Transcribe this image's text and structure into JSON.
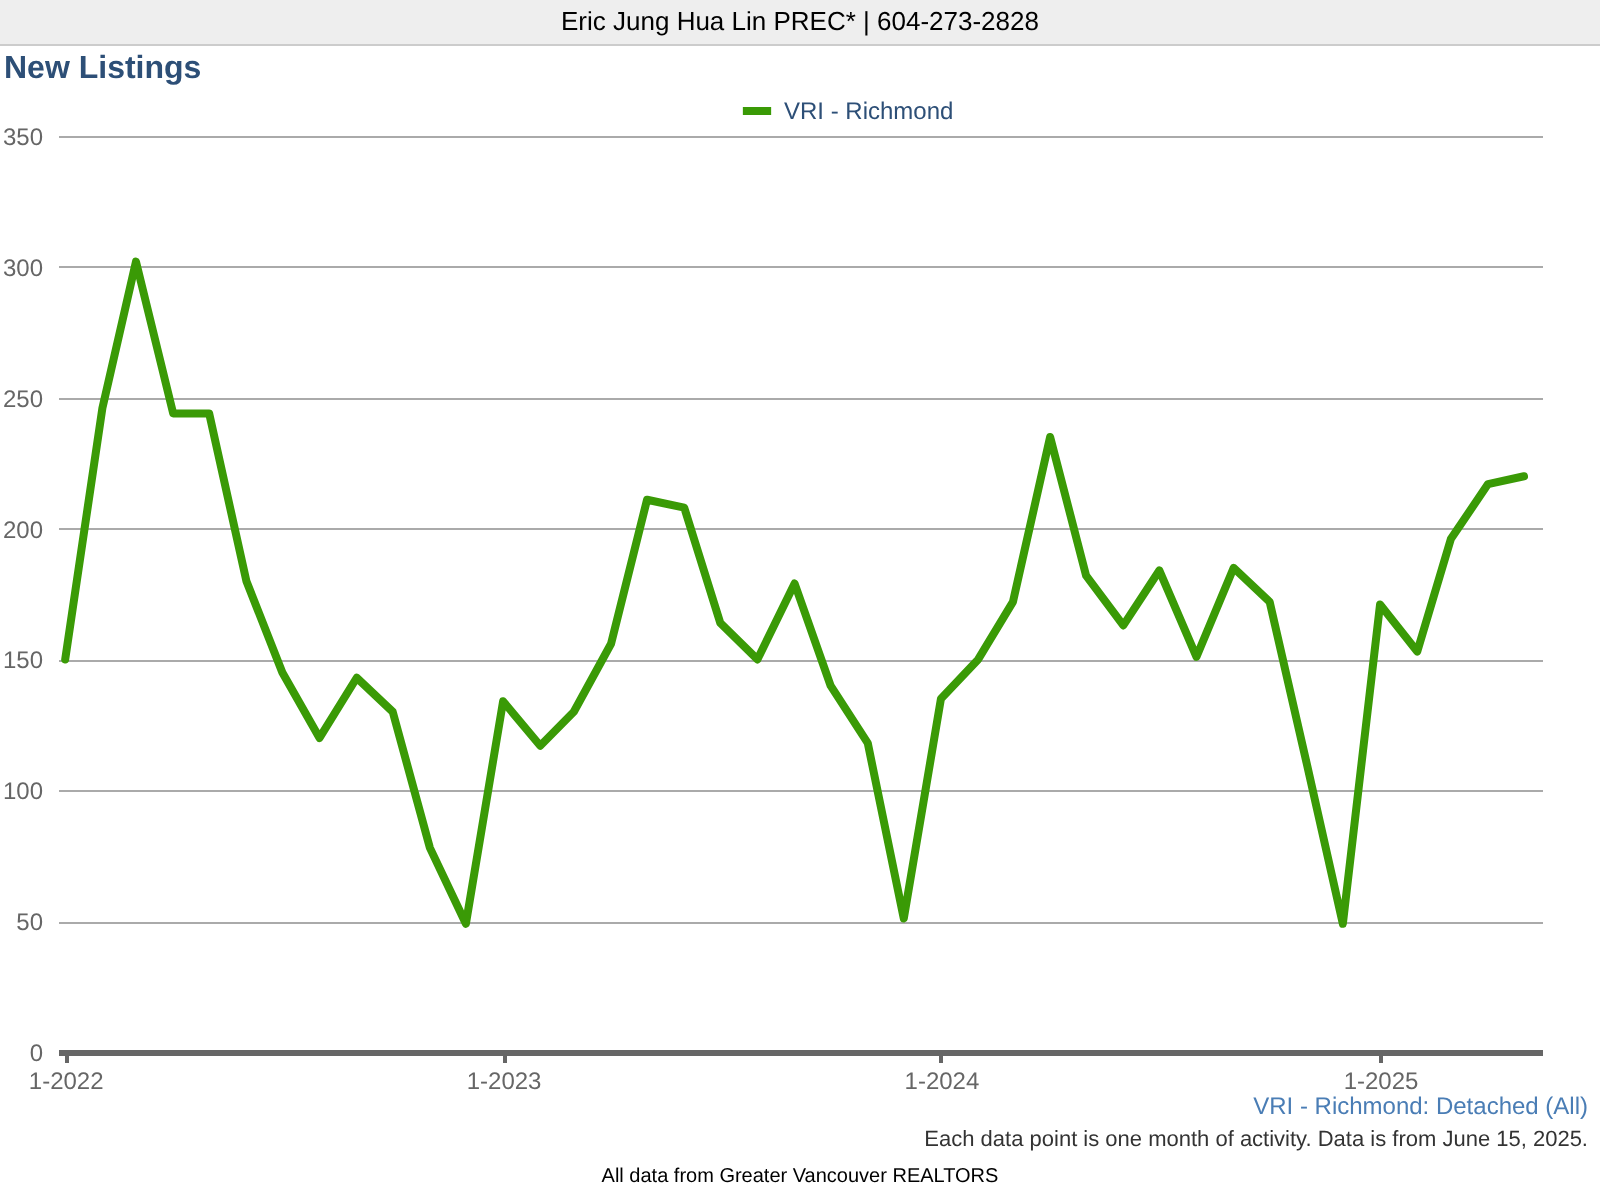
{
  "chart_data": {
    "type": "line",
    "title": "New Listings",
    "x": [
      "2022-01",
      "2022-02",
      "2022-03",
      "2022-04",
      "2022-05",
      "2022-06",
      "2022-07",
      "2022-08",
      "2022-09",
      "2022-10",
      "2022-11",
      "2022-12",
      "2023-01",
      "2023-02",
      "2023-03",
      "2023-04",
      "2023-05",
      "2023-06",
      "2023-07",
      "2023-08",
      "2023-09",
      "2023-10",
      "2023-11",
      "2023-12",
      "2024-01",
      "2024-02",
      "2024-03",
      "2024-04",
      "2024-05",
      "2024-06",
      "2024-07",
      "2024-08",
      "2024-09",
      "2024-10",
      "2024-11",
      "2024-12",
      "2025-01",
      "2025-02",
      "2025-03",
      "2025-04",
      "2025-05"
    ],
    "series": [
      {
        "name": "VRI - Richmond",
        "color": "#3a9a06",
        "values": [
          150,
          246,
          302,
          244,
          244,
          180,
          145,
          120,
          143,
          130,
          78,
          49,
          134,
          117,
          130,
          156,
          211,
          208,
          164,
          150,
          179,
          140,
          118,
          51,
          135,
          150,
          172,
          235,
          182,
          163,
          184,
          151,
          185,
          172,
          110,
          49,
          171,
          153,
          196,
          217,
          220
        ]
      }
    ],
    "xlim": [
      "2021-12-26",
      "2025-05-16"
    ],
    "xticks": [
      {
        "value": "2022-01",
        "label": "1-2022"
      },
      {
        "value": "2023-01",
        "label": "1-2023"
      },
      {
        "value": "2024-01",
        "label": "1-2024"
      },
      {
        "value": "2025-01",
        "label": "1-2025"
      }
    ],
    "ylim": [
      0,
      350
    ],
    "yticks": [
      0,
      50,
      100,
      150,
      200,
      250,
      300,
      350
    ],
    "grid": "y",
    "legend": "top",
    "marker": "none",
    "line_style": "solid",
    "annotations": [
      "Eric Jung Hua Lin PREC* | 604-273-2828",
      "VRI - Richmond: Detached (All)",
      "Each data point is one month of activity. Data is from June 15, 2025.",
      "All data from Greater Vancouver REALTORS"
    ]
  }
}
